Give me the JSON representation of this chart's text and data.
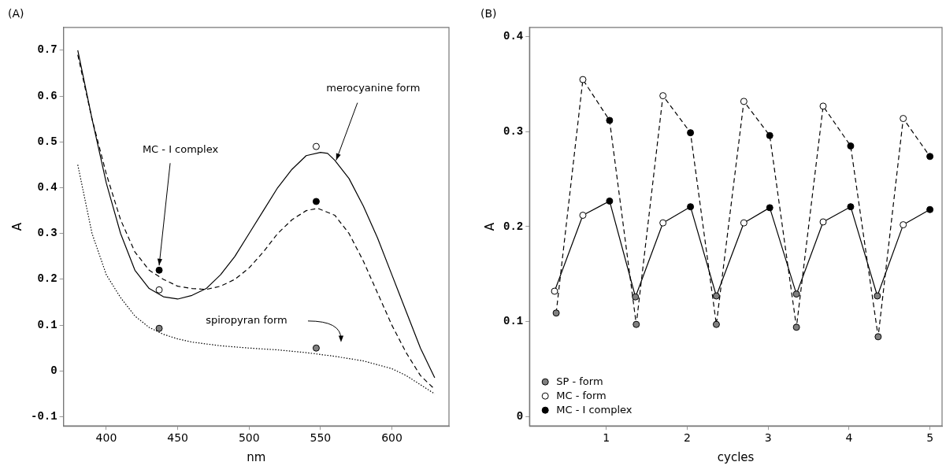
{
  "chart_data": [
    {
      "type": "line",
      "title": "(A)",
      "xlabel": "nm",
      "ylabel": "A",
      "xlim": [
        370,
        640
      ],
      "xticks": [
        400,
        450,
        500,
        550,
        600
      ],
      "ylim": [
        -0.12,
        0.75
      ],
      "yticks": [
        -0.1,
        0,
        0.1,
        0.2,
        0.3,
        0.4,
        0.5,
        0.6,
        0.7
      ],
      "grid": false,
      "legend": false,
      "series": [
        {
          "type": "line",
          "color": "#000000",
          "line_style": "solid",
          "marker": "none",
          "x": [
            380,
            390,
            400,
            410,
            420,
            430,
            440,
            450,
            460,
            470,
            480,
            490,
            500,
            510,
            520,
            530,
            540,
            550,
            555,
            560,
            570,
            580,
            590,
            600,
            610,
            620,
            630
          ],
          "values": [
            0.7,
            0.55,
            0.41,
            0.3,
            0.22,
            0.18,
            0.162,
            0.157,
            0.165,
            0.18,
            0.21,
            0.25,
            0.3,
            0.35,
            0.4,
            0.44,
            0.47,
            0.477,
            0.475,
            0.46,
            0.42,
            0.36,
            0.29,
            0.21,
            0.13,
            0.05,
            -0.015
          ]
        },
        {
          "type": "line",
          "color": "#000000",
          "line_style": "dashed",
          "marker": "none",
          "x": [
            380,
            390,
            400,
            410,
            420,
            430,
            440,
            450,
            460,
            470,
            480,
            490,
            500,
            510,
            520,
            530,
            540,
            548,
            560,
            570,
            580,
            590,
            600,
            610,
            620,
            630
          ],
          "values": [
            0.69,
            0.55,
            0.43,
            0.33,
            0.26,
            0.22,
            0.2,
            0.185,
            0.18,
            0.178,
            0.185,
            0.2,
            0.225,
            0.26,
            0.3,
            0.33,
            0.35,
            0.355,
            0.34,
            0.3,
            0.24,
            0.17,
            0.1,
            0.04,
            -0.01,
            -0.04
          ]
        },
        {
          "type": "line",
          "color": "#000000",
          "line_style": "dotted",
          "marker": "none",
          "x": [
            380,
            390,
            400,
            410,
            420,
            430,
            440,
            450,
            460,
            480,
            500,
            520,
            540,
            560,
            580,
            600,
            610,
            620,
            630
          ],
          "values": [
            0.45,
            0.3,
            0.21,
            0.16,
            0.12,
            0.095,
            0.08,
            0.07,
            0.063,
            0.055,
            0.05,
            0.046,
            0.04,
            0.032,
            0.022,
            0.005,
            -0.01,
            -0.03,
            -0.05
          ]
        },
        {
          "type": "scatter",
          "color": "#ffffff",
          "marker": "circle",
          "x": [
            437,
            547
          ],
          "values": [
            0.177,
            0.49
          ]
        },
        {
          "type": "scatter",
          "color": "#000000",
          "marker": "circle",
          "x": [
            437,
            547
          ],
          "values": [
            0.22,
            0.37
          ]
        },
        {
          "type": "scatter",
          "color": "#808080",
          "marker": "circle",
          "x": [
            437,
            547
          ],
          "values": [
            0.093,
            0.05
          ]
        }
      ],
      "annotations": [
        {
          "text": "merocyanine form",
          "x": 561,
          "y": 0.46
        },
        {
          "text": "MC - I complex",
          "x": 437,
          "y": 0.22
        },
        "spiropyran form"
      ]
    },
    {
      "type": "line",
      "title": "(B)",
      "xlabel": "cycles",
      "ylabel": "A",
      "xlim": [
        0.05,
        5.15
      ],
      "xticks": [
        1,
        2,
        3,
        4,
        5
      ],
      "ylim": [
        -0.01,
        0.41
      ],
      "yticks": [
        0,
        0.1,
        0.2,
        0.3,
        0.4
      ],
      "grid": false,
      "legend": "bottom left",
      "series": [
        {
          "type": "line",
          "color": "#000000",
          "line_style": "solid",
          "marker": "none",
          "x": [
            0.36,
            0.71,
            1.04,
            1.36,
            1.7,
            2.04,
            2.36,
            2.7,
            3.02,
            3.35,
            3.68,
            4.02,
            4.35,
            4.67,
            5.0
          ],
          "values": [
            0.132,
            0.212,
            0.227,
            0.126,
            0.204,
            0.221,
            0.127,
            0.204,
            0.22,
            0.129,
            0.205,
            0.221,
            0.127,
            0.202,
            0.218
          ]
        },
        {
          "type": "line",
          "color": "#000000",
          "line_style": "dashed",
          "marker": "none",
          "x": [
            0.38,
            0.71,
            1.04,
            1.37,
            1.7,
            2.04,
            2.36,
            2.7,
            3.02,
            3.35,
            3.68,
            4.02,
            4.36,
            4.67,
            5.0
          ],
          "values": [
            0.109,
            0.355,
            0.312,
            0.097,
            0.338,
            0.299,
            0.097,
            0.332,
            0.296,
            0.094,
            0.327,
            0.285,
            0.084,
            0.314,
            0.274
          ]
        },
        {
          "type": "scatter",
          "name": "SP - form",
          "color": "#808080",
          "marker": "circle",
          "x": [
            0.38,
            1.36,
            1.37,
            2.36,
            2.36,
            3.35,
            3.35,
            4.35,
            4.36
          ],
          "values": [
            0.109,
            0.126,
            0.097,
            0.127,
            0.097,
            0.129,
            0.094,
            0.127,
            0.084
          ]
        },
        {
          "type": "scatter",
          "name": "MC - form",
          "color": "#ffffff",
          "marker": "circle",
          "x": [
            0.36,
            0.71,
            0.71,
            1.7,
            1.7,
            2.7,
            2.7,
            3.68,
            3.68,
            4.67,
            4.67
          ],
          "values": [
            0.132,
            0.212,
            0.355,
            0.204,
            0.338,
            0.204,
            0.332,
            0.205,
            0.327,
            0.202,
            0.314
          ]
        },
        {
          "type": "scatter",
          "name": "MC - I complex",
          "color": "#000000",
          "marker": "circle",
          "x": [
            1.04,
            1.04,
            2.04,
            2.04,
            3.02,
            3.02,
            4.02,
            4.02,
            5.0,
            5.0
          ],
          "values": [
            0.227,
            0.312,
            0.221,
            0.299,
            0.22,
            0.296,
            0.221,
            0.285,
            0.218,
            0.274
          ]
        }
      ]
    }
  ]
}
